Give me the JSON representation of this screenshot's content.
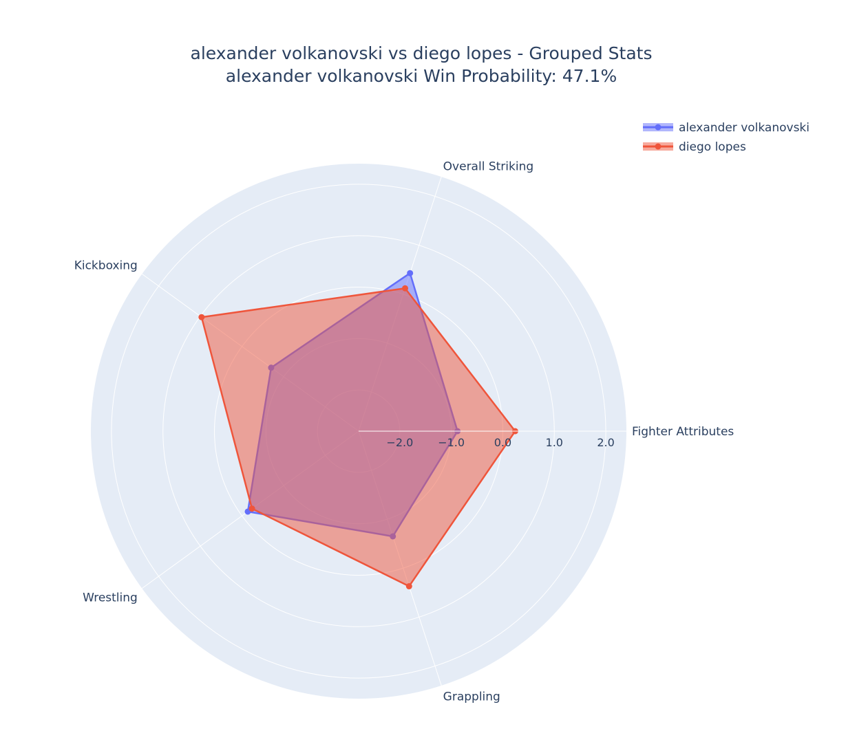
{
  "chart_data": {
    "type": "radar",
    "title": "alexander volkanovski vs diego lopes - Grouped Stats",
    "subtitle": "alexander volkanovski Win Probability: 47.1%",
    "categories": [
      "Fighter Attributes",
      "Overall Striking",
      "Kickboxing",
      "Wrestling",
      "Grappling"
    ],
    "radial_range": [
      -2.8,
      2.4
    ],
    "radial_ticks": [
      -2.0,
      -1.0,
      0.0,
      1.0,
      2.0
    ],
    "radial_tick_labels": [
      "−2.0",
      "−1.0",
      "0.0",
      "1.0",
      "2.0"
    ],
    "grid": true,
    "legend_position": "top-right",
    "series": [
      {
        "name": "alexander volkanovski",
        "values": [
          -0.88,
          0.43,
          -0.7,
          -0.14,
          -0.65
        ],
        "color": "#636efa"
      },
      {
        "name": "diego lopes",
        "values": [
          0.24,
          0.12,
          0.97,
          -0.24,
          0.37
        ],
        "color": "#ef553b"
      }
    ]
  }
}
